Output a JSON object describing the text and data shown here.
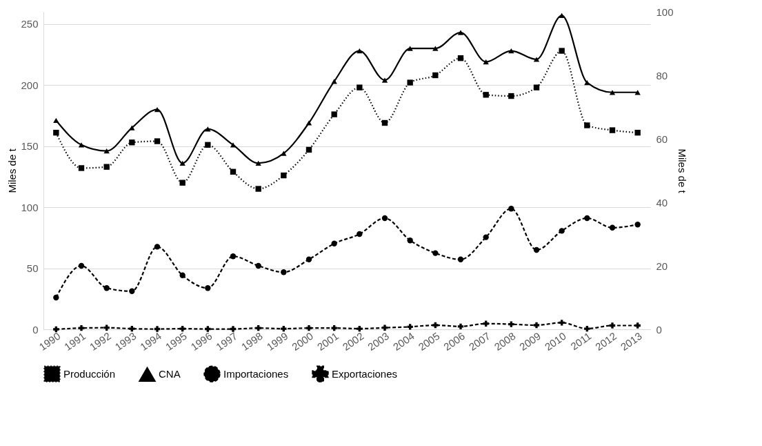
{
  "chart_data": {
    "type": "line",
    "ylabel": "Miles de t",
    "y2label": "Miles de t",
    "categories": [
      "1990",
      "1991",
      "1992",
      "1993",
      "1994",
      "1995",
      "1996",
      "1997",
      "1998",
      "1999",
      "2000",
      "2001",
      "2002",
      "2003",
      "2004",
      "2005",
      "2006",
      "2007",
      "2008",
      "2009",
      "2010",
      "2011",
      "2012",
      "2013"
    ],
    "series": [
      {
        "name": "Producción",
        "color": "#000000",
        "marker": "square",
        "line_style": "dotted",
        "values": [
          161,
          132,
          133,
          153,
          154,
          120,
          151,
          129,
          115,
          126,
          147,
          176,
          198,
          169,
          202,
          208,
          222,
          192,
          191,
          198,
          228,
          167,
          163,
          161
        ]
      },
      {
        "name": "CNA",
        "color": "#000000",
        "marker": "triangle",
        "line_style": "solid",
        "values": [
          171,
          151,
          146,
          165,
          180,
          136,
          164,
          151,
          136,
          144,
          169,
          203,
          228,
          204,
          230,
          230,
          243,
          219,
          228,
          221,
          257,
          202,
          194,
          194
        ]
      },
      {
        "name": "Importaciones",
        "color": "#000000",
        "marker": "circle",
        "line_style": "dashed",
        "axis": "y2",
        "values": [
          10,
          20,
          13,
          12,
          26,
          17,
          13,
          23,
          20,
          18,
          22,
          27,
          30,
          35,
          28,
          24,
          22,
          29,
          38,
          25,
          31,
          35,
          32,
          33
        ]
      },
      {
        "name": "Exportaciones",
        "color": "#000000",
        "marker": "cross",
        "line_style": "dashed",
        "axis": "y2",
        "values": [
          0,
          0.4,
          0.5,
          0.2,
          0.1,
          0.2,
          0.1,
          0.1,
          0.4,
          0.2,
          0.4,
          0.4,
          0.2,
          0.5,
          0.8,
          1.3,
          0.9,
          1.8,
          1.6,
          1.3,
          2.1,
          0.2,
          1.2,
          1.2
        ]
      }
    ],
    "ylim": [
      0,
      260
    ],
    "yticks": [
      0,
      50,
      100,
      150,
      200,
      250
    ],
    "y2lim": [
      0,
      100
    ],
    "y2ticks": [
      0,
      20,
      40,
      60,
      80,
      100
    ],
    "grid": "y",
    "legend": "bottom"
  }
}
